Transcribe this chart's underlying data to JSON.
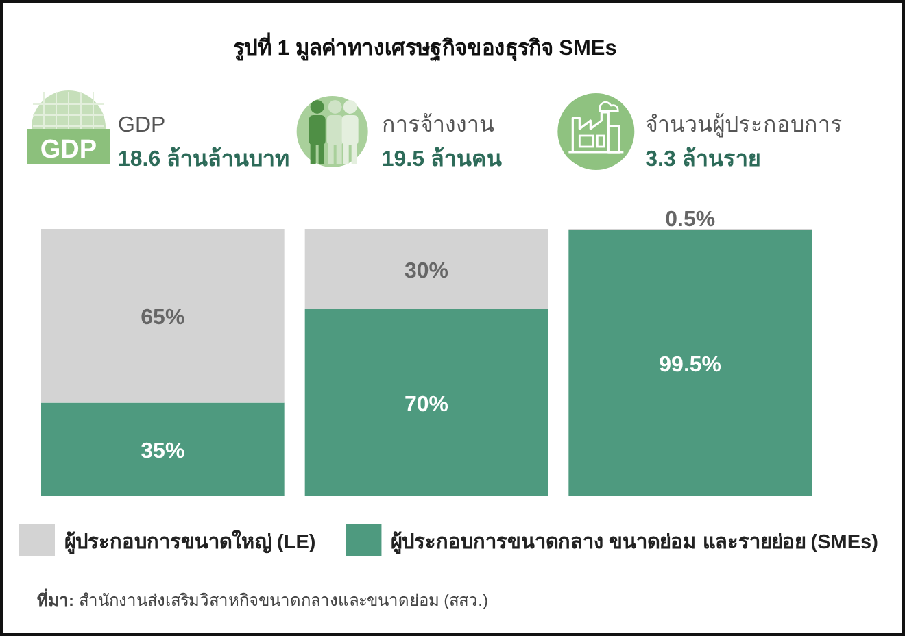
{
  "chart_data": {
    "type": "bar",
    "title": "รูปที่ 1 มูลค่าทางเศรษฐกิจของธุรกิจ SMEs",
    "categories": [
      "GDP",
      "การจ้างงาน",
      "จำนวนผู้ประกอบการ"
    ],
    "series": [
      {
        "name": "ผู้ประกอบการขนาดกลาง ขนาดย่อม และรายย่อย (SMEs)",
        "color": "#4e9a7f",
        "values": [
          35,
          70,
          99.5
        ],
        "value_labels": [
          "35%",
          "70%",
          "99.5%"
        ]
      },
      {
        "name": "ผู้ประกอบการขนาดใหญ่ (LE)",
        "color": "#d3d3d3",
        "values": [
          65,
          30,
          0.5
        ],
        "value_labels": [
          "65%",
          "30%",
          "0.5%"
        ]
      }
    ],
    "stacked": true,
    "ylim": [
      0,
      100
    ],
    "tick_labels": "x",
    "legend": "bottom",
    "annotations": [
      "18.6 ล้านล้านบาท",
      "19.5 ล้านคน",
      "3.3 ล้านราย",
      "**ที่มา:** สำนักงานส่งเสริมวิสาหกิจขนาดกลางและขนาดย่อม (สสว.)"
    ]
  }
}
